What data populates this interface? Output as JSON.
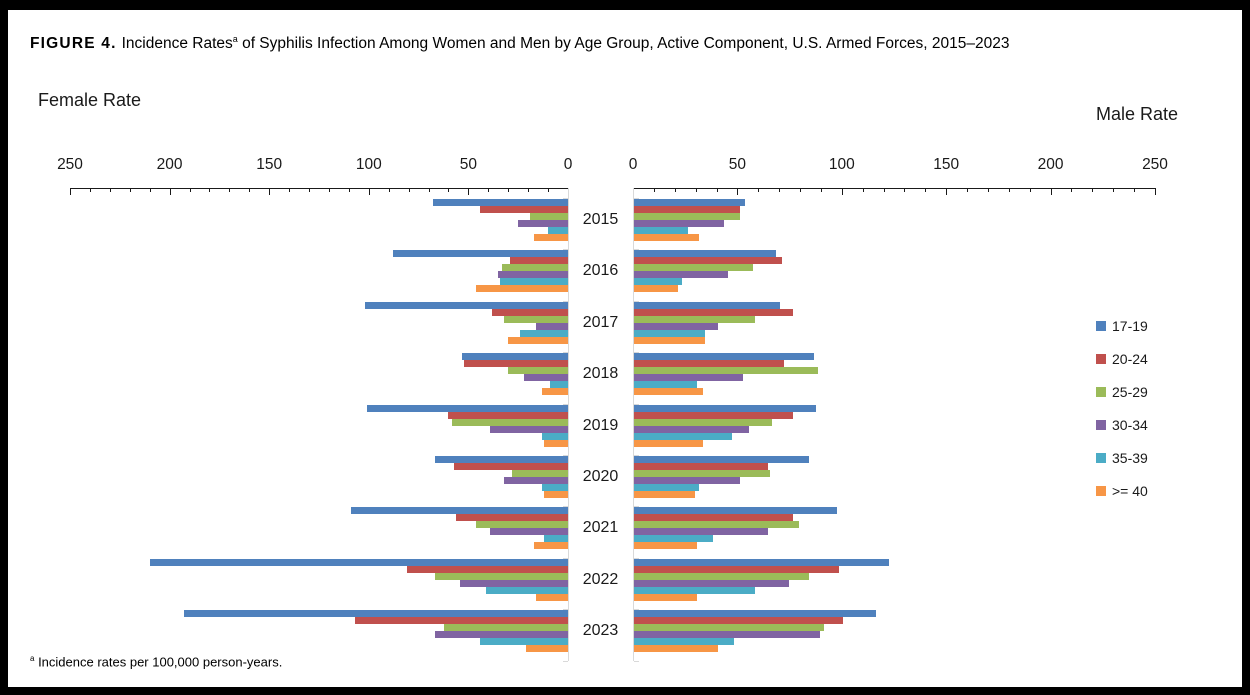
{
  "title": {
    "prefix": "FIGURE 4.",
    "before_sup": "Incidence Rates",
    "sup": "a",
    "after_sup": " of Syphilis Infection Among Women and Men by Age Group, Active Component, U.S. Armed Forces, 2015–2023"
  },
  "footnote": {
    "sup": "a",
    "text": " Incidence rates per 100,000 person-years."
  },
  "chart_data": {
    "type": "bar",
    "subtype": "population_pyramid",
    "title": "Incidence Rates of Syphilis Infection Among Women and Men by Age Group, Active Component, U.S. Armed Forces, 2015–2023",
    "left_axis_label": "Female Rate",
    "right_axis_label": "Male Rate",
    "units": "per 100,000 person-years",
    "legend_position": "right",
    "axis": {
      "max": 250,
      "major_step": 50,
      "minor_step": 10,
      "female_tick_labels": [
        "250",
        "200",
        "150",
        "100",
        "50",
        "0"
      ],
      "male_tick_labels": [
        "0",
        "50",
        "100",
        "150",
        "200",
        "250"
      ]
    },
    "categories": [
      "2015",
      "2016",
      "2017",
      "2018",
      "2019",
      "2020",
      "2021",
      "2022",
      "2023"
    ],
    "series": [
      {
        "name": "17-19",
        "color": "#4F81BD",
        "female": [
          68,
          88,
          102,
          53,
          101,
          67,
          109,
          210,
          193
        ],
        "male": [
          53,
          68,
          70,
          86,
          87,
          84,
          97,
          122,
          116
        ]
      },
      {
        "name": "20-24",
        "color": "#C0504D",
        "female": [
          44,
          29,
          38,
          52,
          60,
          57,
          56,
          81,
          107
        ],
        "male": [
          51,
          71,
          76,
          72,
          76,
          64,
          76,
          98,
          100
        ]
      },
      {
        "name": "25-29",
        "color": "#9BBB59",
        "female": [
          19,
          33,
          32,
          30,
          58,
          28,
          46,
          67,
          62
        ],
        "male": [
          51,
          57,
          58,
          88,
          66,
          65,
          79,
          84,
          91
        ]
      },
      {
        "name": "30-34",
        "color": "#8064A2",
        "female": [
          25,
          35,
          16,
          22,
          39,
          32,
          39,
          54,
          67
        ],
        "male": [
          43,
          45,
          40,
          52,
          55,
          51,
          64,
          74,
          89
        ]
      },
      {
        "name": "35-39",
        "color": "#4BACC6",
        "female": [
          10,
          34,
          24,
          9,
          13,
          13,
          12,
          41,
          44
        ],
        "male": [
          26,
          23,
          34,
          30,
          47,
          31,
          38,
          58,
          48
        ]
      },
      {
        "name": ">= 40",
        "color": "#F79646",
        "female": [
          17,
          46,
          30,
          13,
          12,
          12,
          17,
          16,
          21
        ],
        "male": [
          31,
          21,
          34,
          33,
          33,
          29,
          30,
          30,
          40
        ]
      }
    ]
  }
}
